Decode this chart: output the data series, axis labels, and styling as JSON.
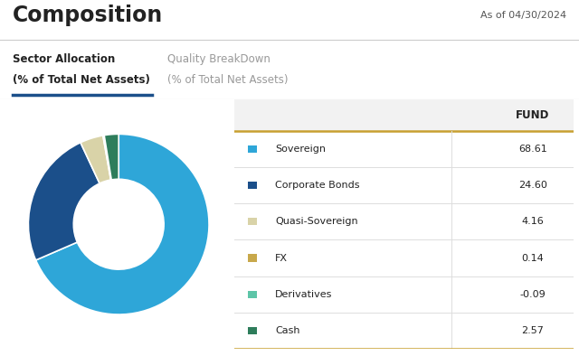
{
  "title": "Composition",
  "date_label": "As of 04/30/2024",
  "tab1_line1": "Sector Allocation",
  "tab1_line2": "(% of Total Net Assets)",
  "tab2_line1": "Quality BreakDown",
  "tab2_line2": "(% of Total Net Assets)",
  "table_header": "FUND",
  "categories": [
    "Sovereign",
    "Corporate Bonds",
    "Quasi-Sovereign",
    "FX",
    "Derivatives",
    "Cash"
  ],
  "values": [
    68.61,
    24.6,
    4.16,
    0.14,
    -0.09,
    2.57
  ],
  "pie_values": [
    68.61,
    24.6,
    4.16,
    0.14,
    0.09,
    2.57
  ],
  "colors": [
    "#2EA6D8",
    "#1B4F8A",
    "#D9D3A8",
    "#C8A84B",
    "#5DC5A8",
    "#2E7D5B"
  ],
  "background_color": "#FFFFFF",
  "text_color": "#222222",
  "header_bg": "#F2F2F2",
  "gold_line": "#C8A030",
  "tab_underline": "#1B4F8A",
  "separator_color": "#DDDDDD",
  "title_line_color": "#CCCCCC",
  "tab_bottom_color": "#CCCCCC",
  "date_color": "#555555",
  "tab2_color": "#999999"
}
